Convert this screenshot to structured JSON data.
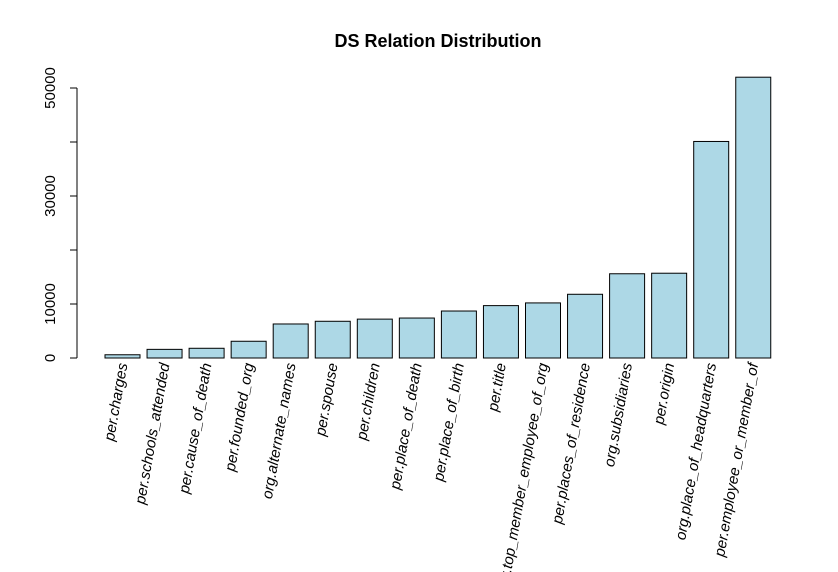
{
  "chart_data": {
    "type": "bar",
    "title": "DS Relation Distribution",
    "xlabel": "",
    "ylabel": "",
    "categories": [
      "per.charges",
      "per.schools_attended",
      "per.cause_of_death",
      "per.founded_org",
      "org.alternate_names",
      "per.spouse",
      "per.children",
      "per.place_of_death",
      "per.place_of_birth",
      "per.title",
      "per.top_member_employee_of_org",
      "per.places_of_residence",
      "org.subsidiaries",
      "per.origin",
      "org.place_of_headquarters",
      "per.employee_or_member_of"
    ],
    "values": [
      600,
      1600,
      1800,
      3100,
      6300,
      6800,
      7200,
      7400,
      8700,
      9700,
      10200,
      11800,
      15600,
      15700,
      40100,
      52000
    ],
    "yticks": [
      0,
      10000,
      20000,
      30000,
      40000,
      50000
    ],
    "ytick_labels": [
      "0",
      "10000",
      "",
      "30000",
      "",
      "50000"
    ],
    "ylim": [
      0,
      52000
    ],
    "bar_color": "#add8e6",
    "grid": false
  }
}
